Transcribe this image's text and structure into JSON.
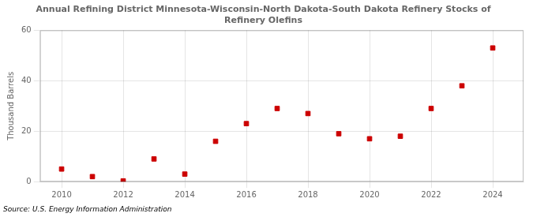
{
  "chart_data": {
    "type": "scatter",
    "title": "Annual Refining District Minnesota-Wisconsin-North Dakota-South Dakota Refinery Stocks of\nRefinery Olefins",
    "y_label": "Thousand Barrels",
    "annotations": [
      "Source: U.S. Energy Information Administration"
    ],
    "x": [
      2010,
      2011,
      2012,
      2013,
      2014,
      2015,
      2016,
      2017,
      2018,
      2019,
      2020,
      2021,
      2022,
      2023,
      2024
    ],
    "values": [
      5,
      2,
      0.3,
      9,
      3,
      16,
      23,
      29,
      27,
      19,
      17,
      18,
      29,
      38,
      53
    ],
    "color": "#cc0000",
    "marker": "square",
    "xlim": [
      2009.3,
      2025.0
    ],
    "ylim": [
      0,
      60
    ],
    "xticks": [
      2010,
      2012,
      2014,
      2016,
      2018,
      2020,
      2022,
      2024
    ],
    "yticks": [
      0,
      20,
      40,
      60
    ],
    "grid": true
  }
}
